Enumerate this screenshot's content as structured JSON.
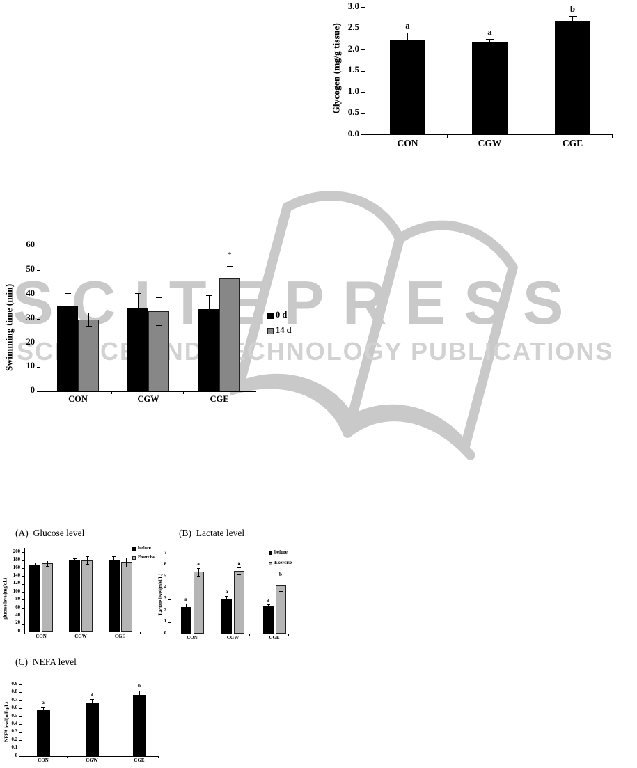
{
  "watermark": {
    "brand": "SCITEPRESS",
    "tagline": "SCIENCE AND TECHNOLOGY PUBLICATIONS",
    "brand_color": "#c9c9c9",
    "tagline_color": "#d2d2d2",
    "book_icon_color": "#c9c9c9"
  },
  "chart_data": [
    {
      "id": "glycogen",
      "type": "bar",
      "title": "",
      "panel": "",
      "ylabel": "Glycogen (mg/g tissue)",
      "xlabel": "",
      "ylim": [
        0,
        3.0
      ],
      "ytick_labels": [
        "0.0",
        "0.5",
        "1.0",
        "1.5",
        "2.0",
        "2.5",
        "3.0"
      ],
      "categories": [
        "CON",
        "CGW",
        "CGE"
      ],
      "grid": false,
      "legend_position": "none",
      "series": [
        {
          "name": "Glycogen",
          "color": "#000000",
          "values": [
            2.23,
            2.17,
            2.67
          ],
          "errors": [
            0.17,
            0.08,
            0.11
          ],
          "letters": [
            "a",
            "a",
            "b"
          ]
        }
      ]
    },
    {
      "id": "swimming",
      "type": "bar",
      "title": "",
      "panel": "",
      "ylabel": "Swimming time (min)",
      "xlabel": "",
      "ylim": [
        0,
        60
      ],
      "ytick_labels": [
        "0",
        "10",
        "20",
        "30",
        "40",
        "50",
        "60"
      ],
      "categories": [
        "CON",
        "CGW",
        "CGE"
      ],
      "grid": false,
      "legend_position": "right",
      "series": [
        {
          "name": "0 d",
          "color": "#000000",
          "values": [
            35,
            34.3,
            34
          ],
          "errors": [
            5.5,
            6.3,
            5.5
          ]
        },
        {
          "name": "14 d",
          "color": "#878787",
          "values": [
            29.7,
            33,
            46.7
          ],
          "errors": [
            2.8,
            5.7,
            4.9
          ],
          "annotations": [
            "",
            "",
            "*"
          ]
        }
      ]
    },
    {
      "id": "glucose",
      "type": "bar",
      "panel": "(A)",
      "title": "Glucose level",
      "ylabel": "glucose level(mg/dL)",
      "xlabel": "",
      "ylim": [
        0,
        200
      ],
      "ytick_labels": [
        "0",
        "20",
        "40",
        "60",
        "80",
        "100",
        "120",
        "140",
        "160",
        "180",
        "200"
      ],
      "categories": [
        "CON",
        "CGW",
        "CGE"
      ],
      "grid": false,
      "legend_position": "right",
      "series": [
        {
          "name": "before",
          "color": "#000000",
          "values": [
            168,
            181,
            181
          ],
          "errors": [
            5,
            4,
            8
          ]
        },
        {
          "name": "Exercise",
          "color": "#b5b5b5",
          "values": [
            172,
            180,
            175
          ],
          "errors": [
            7,
            9,
            11
          ]
        }
      ]
    },
    {
      "id": "lactate",
      "type": "bar",
      "panel": "(B)",
      "title": "Lactate level",
      "ylabel": "Lactate level(mM/L)",
      "xlabel": "",
      "ylim": [
        0,
        7
      ],
      "ytick_labels": [
        "0",
        "1",
        "2",
        "3",
        "4",
        "5",
        "6",
        "7"
      ],
      "categories": [
        "CON",
        "CGW",
        "CGE"
      ],
      "grid": false,
      "legend_position": "right",
      "series": [
        {
          "name": "before",
          "color": "#000000",
          "values": [
            2.3,
            3.0,
            2.4
          ],
          "errors": [
            0.3,
            0.28,
            0.15
          ],
          "letters": [
            "a",
            "a",
            "a"
          ]
        },
        {
          "name": "Exercise",
          "color": "#b5b5b5",
          "values": [
            5.4,
            5.5,
            4.25
          ],
          "errors": [
            0.35,
            0.3,
            0.55
          ],
          "letters": [
            "a",
            "a",
            "b"
          ]
        }
      ]
    },
    {
      "id": "nefa",
      "type": "bar",
      "panel": "(C)",
      "title": "NEFA level",
      "ylabel": "NEFA level(mEq/L)",
      "xlabel": "",
      "ylim": [
        0,
        0.9
      ],
      "ytick_labels": [
        "0",
        "0.1",
        "0.2",
        "0.3",
        "0.4",
        "0.5",
        "0.6",
        "0.7",
        "0.8",
        "0.9"
      ],
      "categories": [
        "CON",
        "CGW",
        "CGE"
      ],
      "grid": false,
      "legend_position": "none",
      "series": [
        {
          "name": "NEFA",
          "color": "#000000",
          "values": [
            0.58,
            0.66,
            0.77
          ],
          "errors": [
            0.035,
            0.06,
            0.05
          ],
          "letters": [
            "a",
            "a",
            "b"
          ]
        }
      ]
    }
  ]
}
